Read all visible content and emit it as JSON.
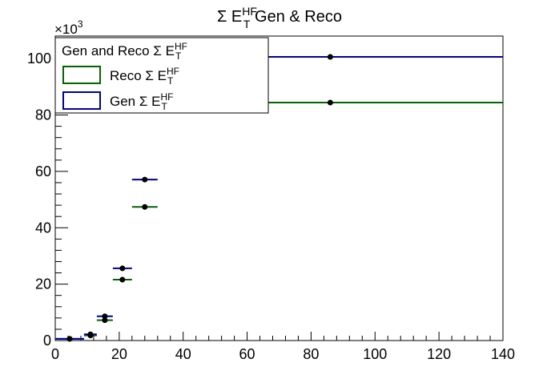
{
  "chart_data": {
    "type": "scatter",
    "title": "Σ E_T^HF Gen & Reco",
    "title_parts": {
      "prefix": "Σ E",
      "sub": "T",
      "sup": "HF",
      "suffix": " Gen & Reco"
    },
    "xlabel": "",
    "ylabel": "",
    "y_multiplier_label": {
      "base": "×10",
      "exp": "3"
    },
    "xlim": [
      0,
      140
    ],
    "ylim": [
      0,
      108
    ],
    "x_ticks": [
      "0",
      "20",
      "40",
      "60",
      "80",
      "100",
      "120",
      "140"
    ],
    "y_ticks": [
      "0",
      "20",
      "40",
      "60",
      "80",
      "100"
    ],
    "grid": false,
    "legend": {
      "placement": "top-left",
      "title": {
        "prefix": "Gen and Reco Σ E",
        "sub": "T",
        "sup": "HF"
      },
      "entries": [
        {
          "prefix": "Reco Σ E",
          "sub": "T",
          "sup": "HF",
          "color": "#006600"
        },
        {
          "prefix": "Gen Σ E",
          "sub": "T",
          "sup": "HF",
          "color": "#000099"
        }
      ]
    },
    "bin_edges": [
      0,
      9,
      13,
      18,
      24,
      32,
      140
    ],
    "series": [
      {
        "name": "Reco Σ E_T^HF",
        "color": "#006600",
        "x": [
          4.5,
          11,
          15.5,
          21,
          28,
          86
        ],
        "values": [
          0.6,
          1.8,
          7.2,
          21.6,
          47.4,
          84.4
        ]
      },
      {
        "name": "Gen Σ E_T^HF",
        "color": "#000099",
        "x": [
          4.5,
          11,
          15.5,
          21,
          28,
          86
        ],
        "values": [
          0.6,
          2.2,
          8.6,
          25.6,
          57.1,
          100.6
        ]
      }
    ]
  }
}
